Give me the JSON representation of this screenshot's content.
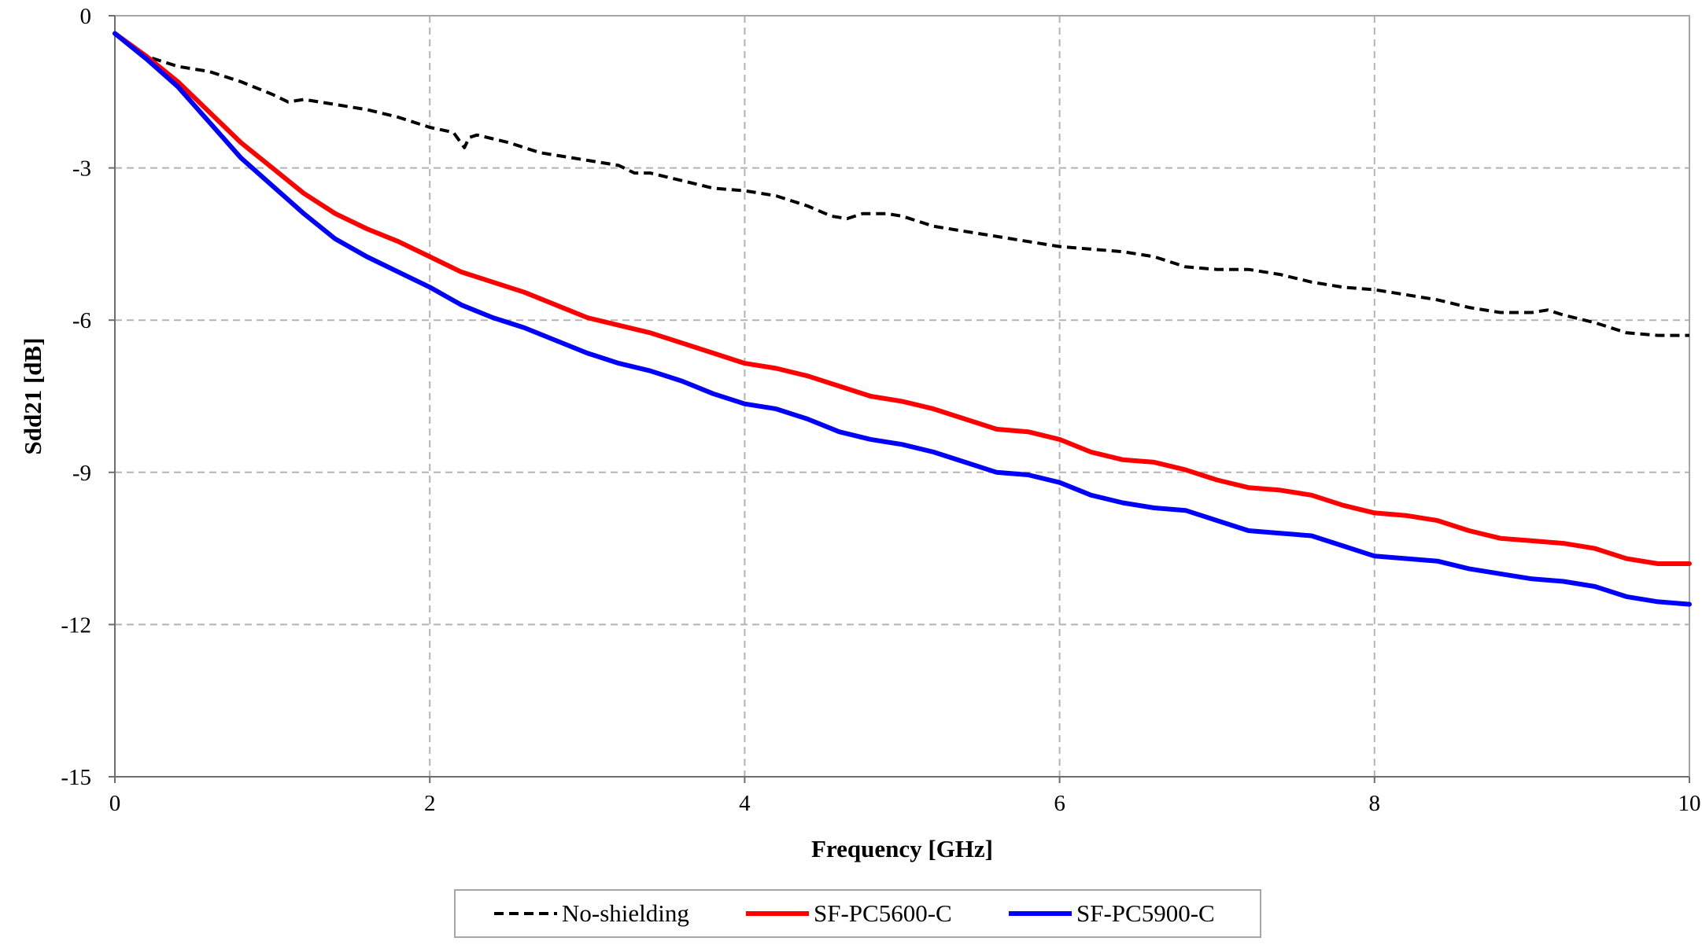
{
  "chart_data": {
    "type": "line",
    "xlabel": "Frequency [GHz]",
    "ylabel": "Sdd21 [dB]",
    "xlim": [
      0,
      10
    ],
    "ylim": [
      -15,
      0
    ],
    "x_ticks": [
      "0",
      "2",
      "4",
      "6",
      "8",
      "10"
    ],
    "y_ticks": [
      "0",
      "-3",
      "-6",
      "-9",
      "-12",
      "-15"
    ],
    "grid": true,
    "legend_position": "bottom-center",
    "series": [
      {
        "name": "No-shielding",
        "color": "#000000",
        "style": "dashed",
        "x": [
          0.0,
          0.2,
          0.4,
          0.6,
          0.8,
          1.0,
          1.1,
          1.2,
          1.4,
          1.6,
          1.8,
          2.0,
          2.15,
          2.22,
          2.25,
          2.3,
          2.5,
          2.7,
          3.0,
          3.2,
          3.3,
          3.4,
          3.6,
          3.8,
          4.0,
          4.2,
          4.4,
          4.55,
          4.65,
          4.75,
          4.9,
          5.0,
          5.2,
          5.4,
          5.6,
          5.8,
          6.0,
          6.2,
          6.4,
          6.6,
          6.8,
          7.0,
          7.2,
          7.4,
          7.6,
          7.8,
          8.0,
          8.2,
          8.4,
          8.6,
          8.8,
          9.0,
          9.1,
          9.2,
          9.4,
          9.6,
          9.8,
          10.0
        ],
        "values": [
          -0.35,
          -0.8,
          -1.0,
          -1.1,
          -1.3,
          -1.55,
          -1.7,
          -1.65,
          -1.75,
          -1.85,
          -2.0,
          -2.2,
          -2.3,
          -2.6,
          -2.4,
          -2.35,
          -2.5,
          -2.7,
          -2.85,
          -2.95,
          -3.1,
          -3.1,
          -3.25,
          -3.4,
          -3.45,
          -3.55,
          -3.75,
          -3.95,
          -4.0,
          -3.9,
          -3.9,
          -3.95,
          -4.15,
          -4.25,
          -4.35,
          -4.45,
          -4.55,
          -4.6,
          -4.65,
          -4.75,
          -4.95,
          -5.0,
          -5.0,
          -5.1,
          -5.25,
          -5.35,
          -5.4,
          -5.5,
          -5.6,
          -5.75,
          -5.85,
          -5.85,
          -5.8,
          -5.9,
          -6.05,
          -6.25,
          -6.3,
          -6.3
        ]
      },
      {
        "name": "SF-PC5600-C",
        "color": "#ff0000",
        "style": "solid",
        "x": [
          0.0,
          0.2,
          0.4,
          0.6,
          0.8,
          1.0,
          1.2,
          1.4,
          1.6,
          1.8,
          2.0,
          2.2,
          2.4,
          2.6,
          2.8,
          3.0,
          3.2,
          3.4,
          3.6,
          3.8,
          4.0,
          4.2,
          4.4,
          4.6,
          4.8,
          5.0,
          5.2,
          5.4,
          5.6,
          5.8,
          6.0,
          6.2,
          6.4,
          6.6,
          6.8,
          7.0,
          7.2,
          7.4,
          7.6,
          7.8,
          8.0,
          8.2,
          8.4,
          8.6,
          8.8,
          9.0,
          9.2,
          9.4,
          9.6,
          9.8,
          10.0
        ],
        "values": [
          -0.35,
          -0.8,
          -1.3,
          -1.9,
          -2.5,
          -3.0,
          -3.5,
          -3.9,
          -4.2,
          -4.45,
          -4.75,
          -5.05,
          -5.25,
          -5.45,
          -5.7,
          -5.95,
          -6.1,
          -6.25,
          -6.45,
          -6.65,
          -6.85,
          -6.95,
          -7.1,
          -7.3,
          -7.5,
          -7.6,
          -7.75,
          -7.95,
          -8.15,
          -8.2,
          -8.35,
          -8.6,
          -8.75,
          -8.8,
          -8.95,
          -9.15,
          -9.3,
          -9.35,
          -9.45,
          -9.65,
          -9.8,
          -9.85,
          -9.95,
          -10.15,
          -10.3,
          -10.35,
          -10.4,
          -10.5,
          -10.7,
          -10.8,
          -10.8
        ]
      },
      {
        "name": "SF-PC5900-C",
        "color": "#0000ff",
        "style": "solid",
        "x": [
          0.0,
          0.2,
          0.4,
          0.6,
          0.8,
          1.0,
          1.2,
          1.4,
          1.6,
          1.8,
          2.0,
          2.2,
          2.4,
          2.6,
          2.8,
          3.0,
          3.2,
          3.4,
          3.6,
          3.8,
          4.0,
          4.2,
          4.4,
          4.6,
          4.8,
          5.0,
          5.2,
          5.4,
          5.6,
          5.8,
          6.0,
          6.2,
          6.4,
          6.6,
          6.8,
          7.0,
          7.2,
          7.4,
          7.6,
          7.8,
          8.0,
          8.2,
          8.4,
          8.6,
          8.8,
          9.0,
          9.2,
          9.4,
          9.6,
          9.8,
          10.0
        ],
        "values": [
          -0.35,
          -0.85,
          -1.4,
          -2.1,
          -2.8,
          -3.35,
          -3.9,
          -4.4,
          -4.75,
          -5.05,
          -5.35,
          -5.7,
          -5.95,
          -6.15,
          -6.4,
          -6.65,
          -6.85,
          -7.0,
          -7.2,
          -7.45,
          -7.65,
          -7.75,
          -7.95,
          -8.2,
          -8.35,
          -8.45,
          -8.6,
          -8.8,
          -9.0,
          -9.05,
          -9.2,
          -9.45,
          -9.6,
          -9.7,
          -9.75,
          -9.95,
          -10.15,
          -10.2,
          -10.25,
          -10.45,
          -10.65,
          -10.7,
          -10.75,
          -10.9,
          -11.0,
          -11.1,
          -11.15,
          -11.25,
          -11.45,
          -11.55,
          -11.6
        ]
      }
    ]
  }
}
